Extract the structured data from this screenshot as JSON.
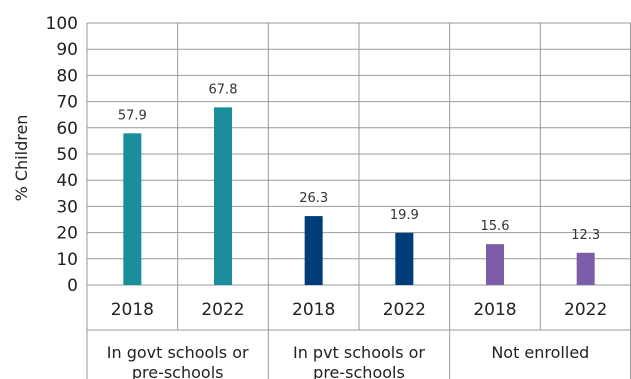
{
  "chart_data": {
    "type": "bar",
    "ylabel": "% Children",
    "ylim": [
      0,
      100
    ],
    "yticks": [
      0,
      10,
      20,
      30,
      40,
      50,
      60,
      70,
      80,
      90,
      100
    ],
    "categories": [
      "2018",
      "2022",
      "2018",
      "2022",
      "2018",
      "2022"
    ],
    "groups": [
      {
        "label_lines": [
          "In govt schools or",
          "pre-schools"
        ],
        "color": "#1a8f9b"
      },
      {
        "label_lines": [
          "In pvt schools or",
          "pre-schools"
        ],
        "color": "#003d7a"
      },
      {
        "label_lines": [
          "Not enrolled"
        ],
        "color": "#7b5ea7"
      }
    ],
    "values": [
      57.9,
      67.8,
      26.3,
      19.9,
      15.6,
      12.3
    ],
    "value_labels": [
      "57.9",
      "67.8",
      "26.3",
      "19.9",
      "15.6",
      "12.3"
    ],
    "bar_group_index": [
      0,
      0,
      1,
      1,
      2,
      2
    ],
    "grid": true,
    "legend": "none"
  }
}
